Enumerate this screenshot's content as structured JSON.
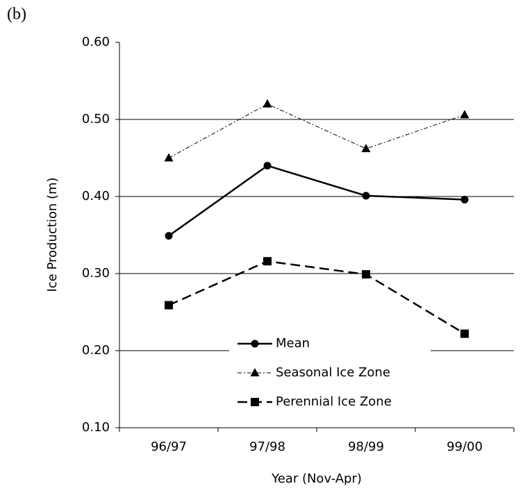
{
  "chart_data": {
    "type": "line",
    "panel_label": "(b)",
    "x_label": "Year (Nov-Apr)",
    "y_label": "Ice Production (m)",
    "categories": [
      "96/97",
      "97/98",
      "98/99",
      "99/00"
    ],
    "series": [
      {
        "name": "Mean",
        "color": "#000000",
        "marker": "circle",
        "dash": "solid",
        "values": [
          0.349,
          0.44,
          0.401,
          0.396
        ]
      },
      {
        "name": "Seasonal Ice Zone",
        "color": "#000000",
        "marker": "triangle",
        "dash": "dashdot",
        "values": [
          0.45,
          0.52,
          0.462,
          0.506
        ]
      },
      {
        "name": "Perennial Ice Zone",
        "color": "#000000",
        "marker": "square",
        "dash": "dashed",
        "values": [
          0.259,
          0.316,
          0.299,
          0.222
        ]
      }
    ],
    "ylim": [
      0.1,
      0.6
    ],
    "yticks": [
      {
        "value": 0.1,
        "label": "0.10"
      },
      {
        "value": 0.2,
        "label": "0.20"
      },
      {
        "value": 0.3,
        "label": "0.30"
      },
      {
        "value": 0.4,
        "label": "0.40"
      },
      {
        "value": 0.5,
        "label": "0.50"
      },
      {
        "value": 0.6,
        "label": "0.60"
      }
    ],
    "grid": true,
    "legend": "lower center"
  }
}
